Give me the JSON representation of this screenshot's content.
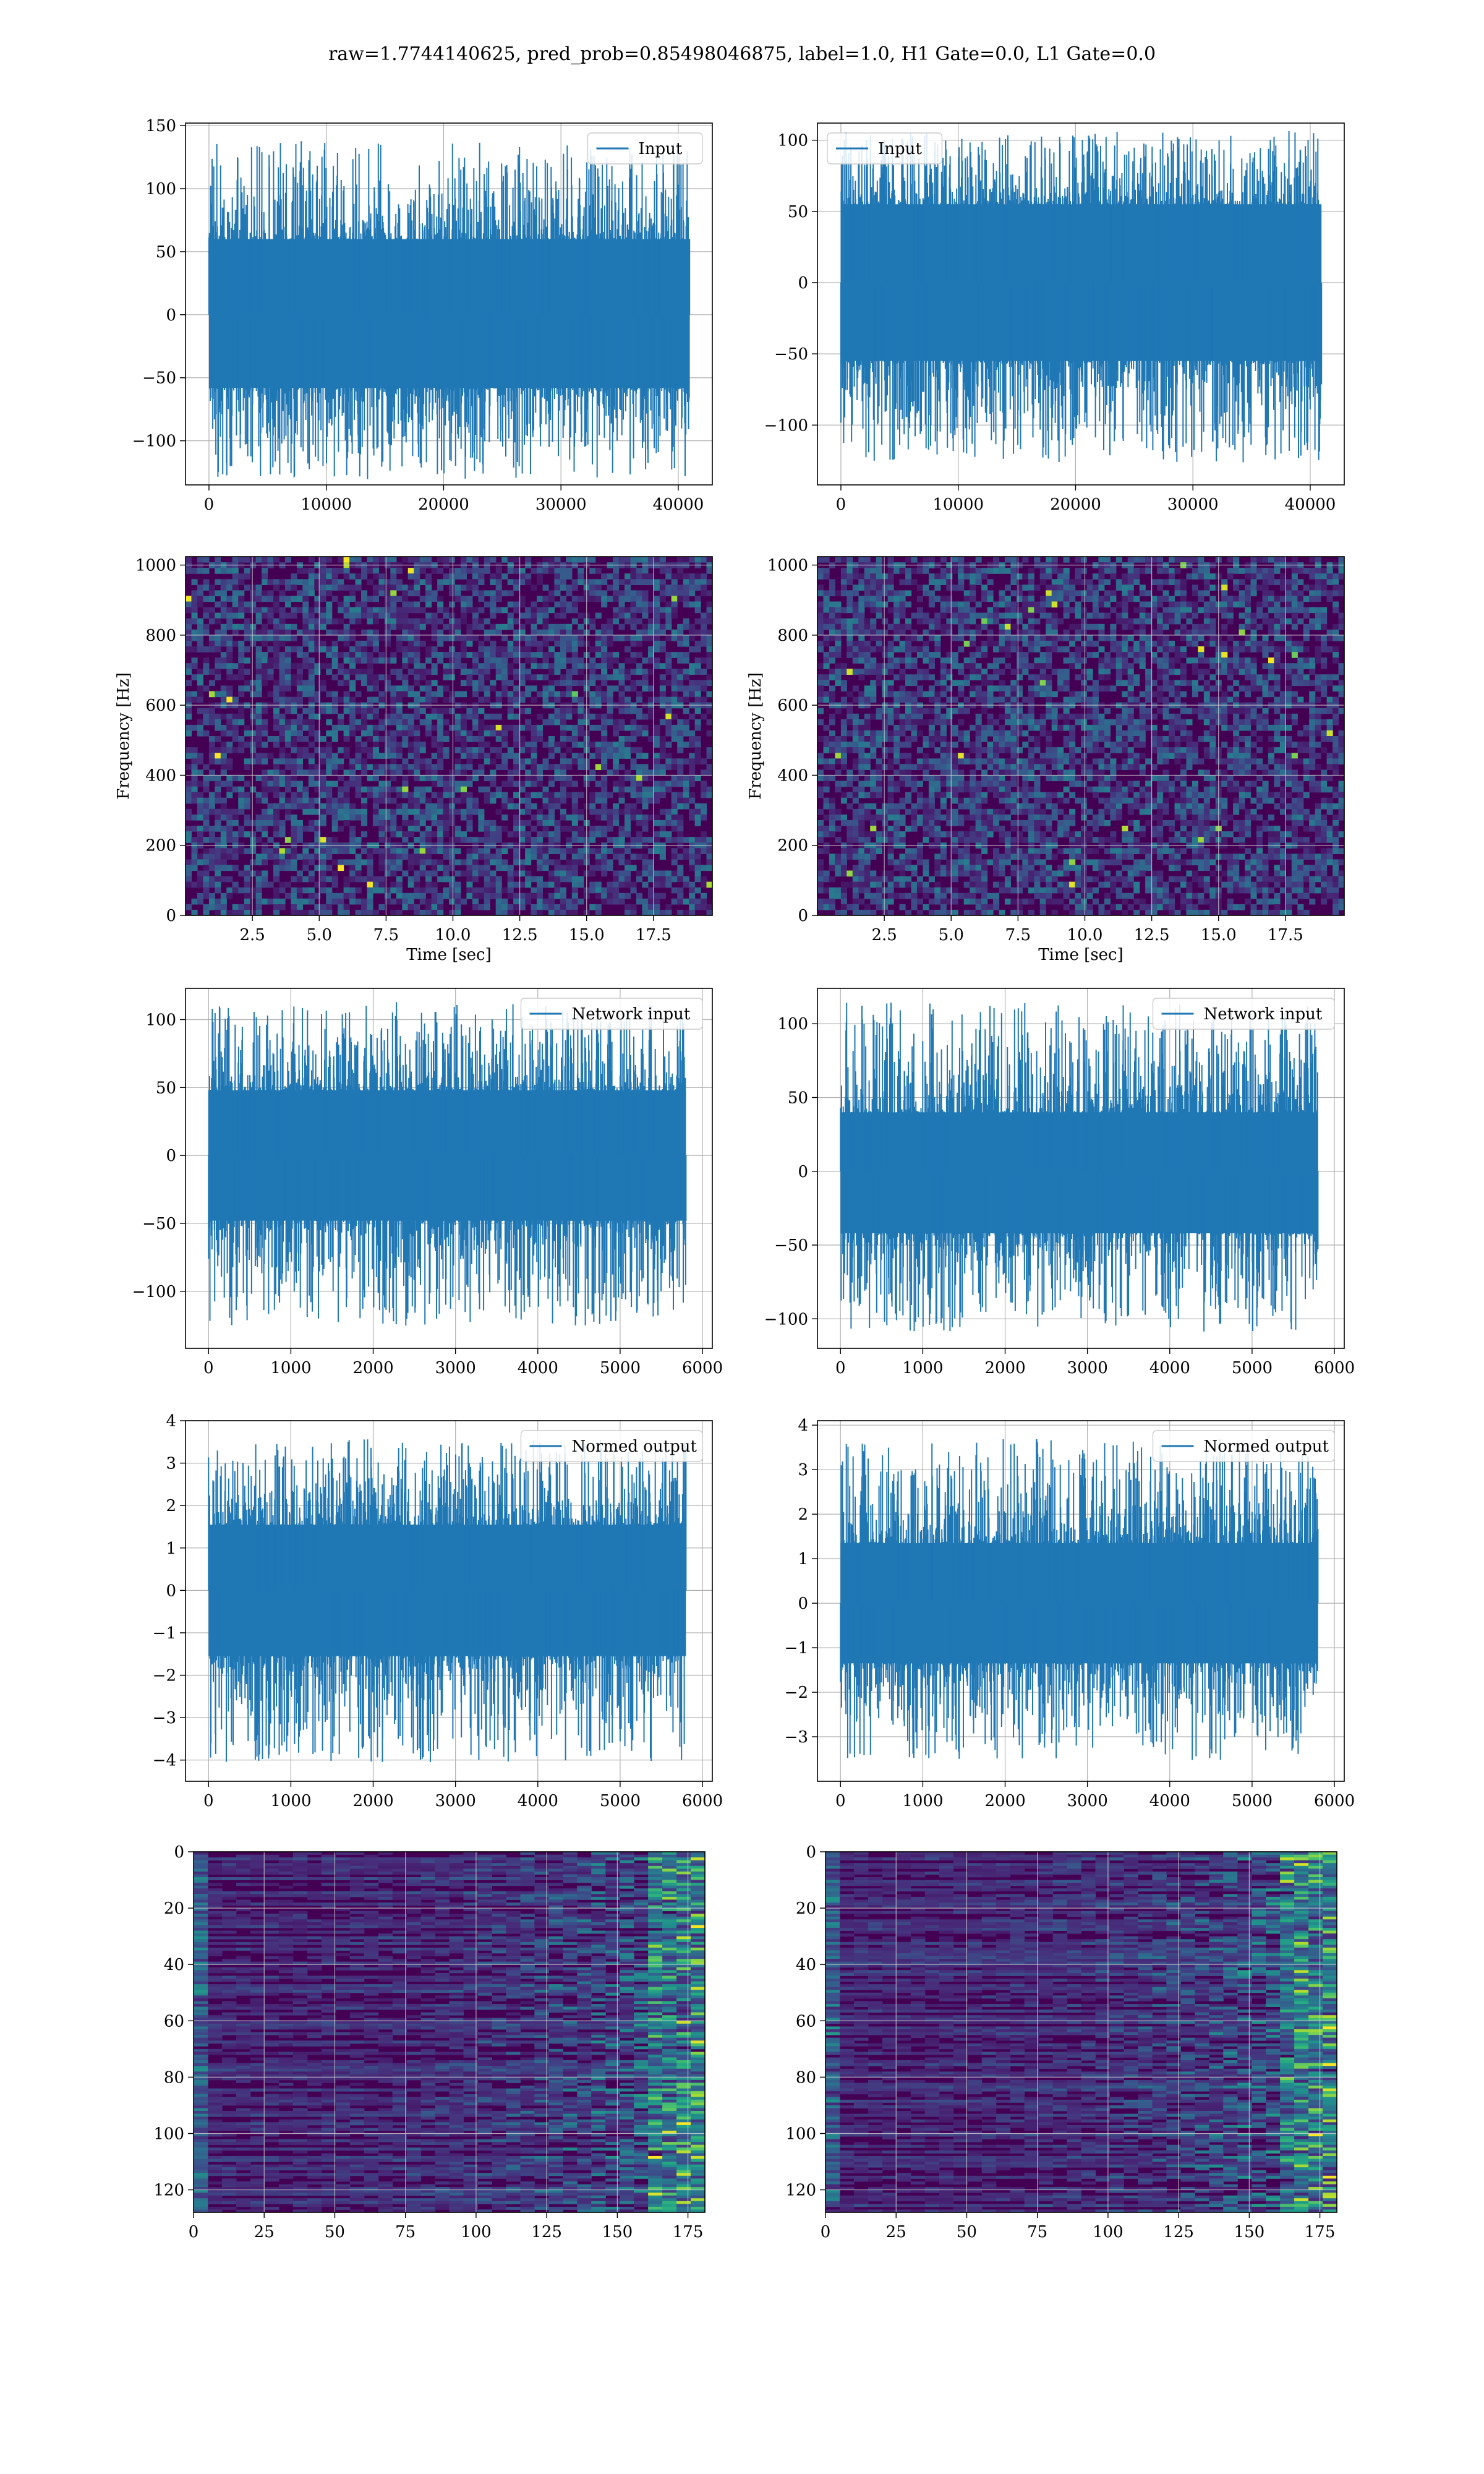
{
  "figure_title": "raw=1.7744140625, pred_prob=0.85498046875, label=1.0, H1 Gate=0.0, L1 Gate=0.0",
  "colors": {
    "line": "#1f77b4",
    "grid": "#b0b0b0",
    "viridis_dark": "#440154"
  },
  "chart_data": [
    {
      "id": "h1-input",
      "type": "line",
      "legend": "Input",
      "legend_loc": "upper right",
      "xlim": [
        -2000,
        42900
      ],
      "ylim": [
        -135,
        152
      ],
      "xticks": [
        0,
        10000,
        20000,
        30000,
        40000
      ],
      "yticks": [
        -100,
        -50,
        0,
        50,
        100,
        150
      ],
      "samples": 40960,
      "band": [
        -58,
        60
      ],
      "spike_range": [
        -132,
        138
      ],
      "grid": true
    },
    {
      "id": "l1-input",
      "type": "line",
      "legend": "Input",
      "legend_loc": "upper left",
      "xlim": [
        -2000,
        42900
      ],
      "ylim": [
        -142,
        112
      ],
      "xticks": [
        0,
        10000,
        20000,
        30000,
        40000
      ],
      "yticks": [
        -100,
        -50,
        0,
        50,
        100
      ],
      "samples": 40960,
      "band": [
        -55,
        55
      ],
      "spike_range": [
        -128,
        107
      ],
      "grid": true
    },
    {
      "id": "h1-spectrogram",
      "type": "heatmap",
      "colormap": "viridis",
      "xlabel": "Time [sec]",
      "ylabel": "Frequency [Hz]",
      "xlim": [
        0,
        19.7
      ],
      "ylim": [
        0,
        1024
      ],
      "xticks": [
        "2.5",
        "5.0",
        "7.5",
        "10.0",
        "12.5",
        "15.0",
        "17.5"
      ],
      "yticks": [
        "0",
        "200",
        "400",
        "600",
        "800",
        "1000"
      ],
      "grid": true
    },
    {
      "id": "l1-spectrogram",
      "type": "heatmap",
      "colormap": "viridis",
      "xlabel": "Time [sec]",
      "ylabel": "Frequency [Hz]",
      "xlim": [
        0,
        19.7
      ],
      "ylim": [
        0,
        1024
      ],
      "xticks": [
        "2.5",
        "5.0",
        "7.5",
        "10.0",
        "12.5",
        "15.0",
        "17.5"
      ],
      "yticks": [
        "0",
        "200",
        "400",
        "600",
        "800",
        "1000"
      ],
      "grid": true
    },
    {
      "id": "h1-network-input",
      "type": "line",
      "legend": "Network input",
      "legend_loc": "upper right",
      "xlim": [
        -280,
        6120
      ],
      "ylim": [
        -142,
        123
      ],
      "xticks": [
        0,
        1000,
        2000,
        3000,
        4000,
        5000,
        6000
      ],
      "yticks": [
        -100,
        -50,
        0,
        50,
        100
      ],
      "samples": 5800,
      "band": [
        -48,
        48
      ],
      "spike_range": [
        -127,
        113
      ],
      "grid": true
    },
    {
      "id": "l1-network-input",
      "type": "line",
      "legend": "Network input",
      "legend_loc": "upper right",
      "xlim": [
        -280,
        6120
      ],
      "ylim": [
        -120,
        124
      ],
      "xticks": [
        0,
        1000,
        2000,
        3000,
        4000,
        5000,
        6000
      ],
      "yticks": [
        -100,
        -50,
        0,
        50,
        100
      ],
      "samples": 5800,
      "band": [
        -42,
        40
      ],
      "spike_range": [
        -110,
        116
      ],
      "grid": true
    },
    {
      "id": "h1-normed-output",
      "type": "line",
      "legend": "Normed output",
      "legend_loc": "upper right",
      "xlim": [
        -280,
        6120
      ],
      "ylim": [
        -4.5,
        4.0
      ],
      "xticks": [
        0,
        1000,
        2000,
        3000,
        4000,
        5000,
        6000
      ],
      "yticks": [
        -4,
        -3,
        -2,
        -1,
        0,
        1,
        2,
        3,
        4
      ],
      "samples": 5800,
      "band": [
        -1.55,
        1.55
      ],
      "spike_range": [
        -4.1,
        3.6
      ],
      "grid": true
    },
    {
      "id": "l1-normed-output",
      "type": "line",
      "legend": "Normed output",
      "legend_loc": "upper right",
      "xlim": [
        -280,
        6120
      ],
      "ylim": [
        -4.0,
        4.1
      ],
      "xticks": [
        0,
        1000,
        2000,
        3000,
        4000,
        5000,
        6000
      ],
      "yticks": [
        -3,
        -2,
        -1,
        0,
        1,
        2,
        3,
        4
      ],
      "samples": 5800,
      "band": [
        -1.35,
        1.35
      ],
      "spike_range": [
        -3.55,
        3.75
      ],
      "grid": true
    },
    {
      "id": "h1-network-output",
      "type": "heatmap",
      "colormap": "viridis",
      "xlim": [
        0,
        181
      ],
      "ylim": [
        128,
        0
      ],
      "xticks": [
        "0",
        "25",
        "50",
        "75",
        "100",
        "125",
        "150",
        "175"
      ],
      "yticks": [
        "0",
        "20",
        "40",
        "60",
        "80",
        "100",
        "120"
      ],
      "grid": true
    },
    {
      "id": "l1-network-output",
      "type": "heatmap",
      "colormap": "viridis",
      "xlim": [
        0,
        181
      ],
      "ylim": [
        128,
        0
      ],
      "xticks": [
        "0",
        "25",
        "50",
        "75",
        "100",
        "125",
        "150",
        "175"
      ],
      "yticks": [
        "0",
        "20",
        "40",
        "60",
        "80",
        "100",
        "120"
      ],
      "grid": true
    }
  ]
}
